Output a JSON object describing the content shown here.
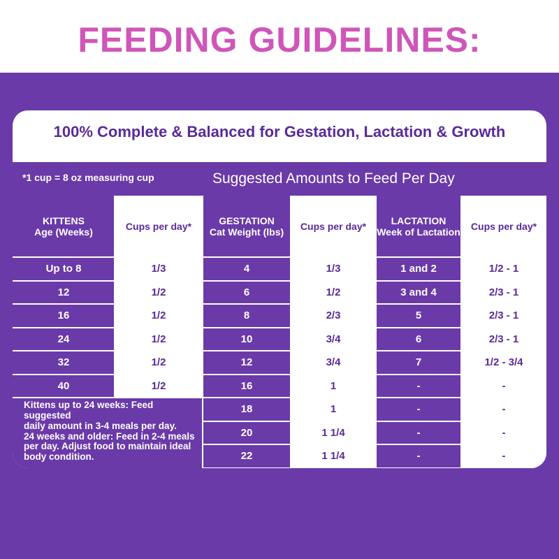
{
  "title": "FEEDING GUIDELINES:",
  "subtitle": "100% Complete & Balanced for Gestation, Lactation & Growth",
  "cup_note": "*1 cup = 8 oz measuring cup",
  "suggested_heading": "Suggested Amounts to Feed Per Day",
  "headers": {
    "kittens": [
      "KITTENS",
      "Age (Weeks)"
    ],
    "kitten_cups": "Cups per day*",
    "gestation": [
      "GESTATION",
      "Cat Weight (lbs)"
    ],
    "gestation_cups": "Cups per day*",
    "lactation": [
      "LACTATION",
      "Week of Lactation"
    ],
    "lactation_cups": "Cups per day*"
  },
  "kitten_rows": [
    [
      "Up to 8",
      "1/3"
    ],
    [
      "12",
      "1/2"
    ],
    [
      "16",
      "1/2"
    ],
    [
      "24",
      "1/2"
    ],
    [
      "32",
      "1/2"
    ],
    [
      "40",
      "1/2"
    ]
  ],
  "gestation_rows": [
    [
      "4",
      "1/3"
    ],
    [
      "6",
      "1/2"
    ],
    [
      "8",
      "2/3"
    ],
    [
      "10",
      "3/4"
    ],
    [
      "12",
      "3/4"
    ],
    [
      "16",
      "1"
    ],
    [
      "18",
      "1"
    ],
    [
      "20",
      "1 1/4"
    ],
    [
      "22",
      "1 1/4"
    ]
  ],
  "lactation_rows": [
    [
      "1 and 2",
      "1/2 - 1"
    ],
    [
      "3 and 4",
      "2/3 - 1"
    ],
    [
      "5",
      "2/3 - 1"
    ],
    [
      "6",
      "2/3 - 1"
    ],
    [
      "7",
      "1/2 - 3/4"
    ],
    [
      "-",
      "-"
    ],
    [
      "-",
      "-"
    ],
    [
      "-",
      "-"
    ],
    [
      "-",
      "-"
    ]
  ],
  "note_lines": [
    "Kittens up to 24 weeks: Feed suggested",
    "daily amount in 3-4 meals per day.",
    "24 weeks and older: Feed in 2-4 meals",
    "per day. Adjust food to maintain ideal",
    "body condition."
  ]
}
